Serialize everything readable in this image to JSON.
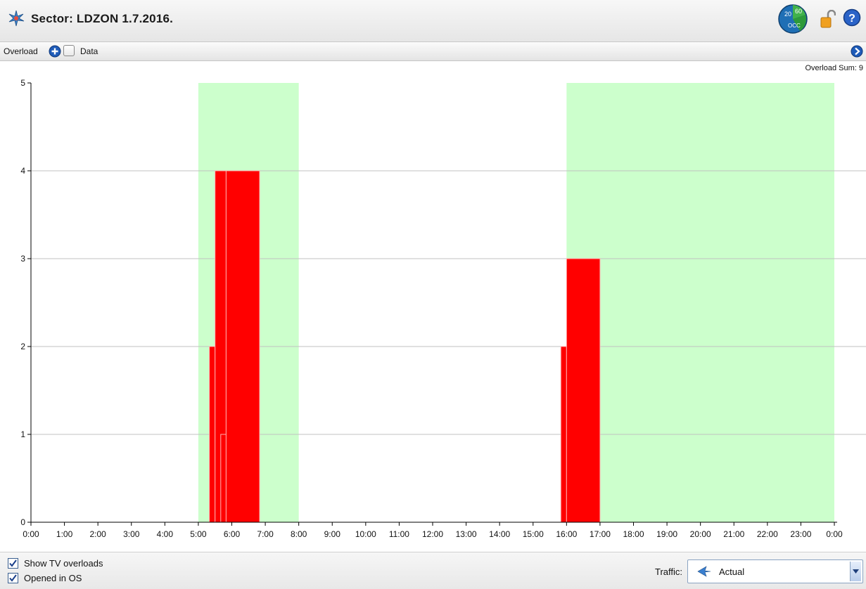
{
  "window": {
    "title": "Sector: LDZON  1.7.2016."
  },
  "toolbar": {
    "overload_label": "Overload",
    "data_label": "Data",
    "data_checked": false
  },
  "chart": {
    "overload_sum": "Overload Sum: 9"
  },
  "chart_data": {
    "type": "bar",
    "xlabel": "",
    "ylabel": "",
    "x_ticks": [
      "0:00",
      "1:00",
      "2:00",
      "3:00",
      "4:00",
      "5:00",
      "6:00",
      "7:00",
      "8:00",
      "9:00",
      "10:00",
      "11:00",
      "12:00",
      "13:00",
      "14:00",
      "15:00",
      "16:00",
      "17:00",
      "18:00",
      "19:00",
      "20:00",
      "21:00",
      "22:00",
      "23:00",
      "0:00"
    ],
    "y_ticks": [
      "0",
      "1",
      "2",
      "3",
      "4",
      "5"
    ],
    "xlim_hours": [
      0,
      24
    ],
    "ylim": [
      0,
      5
    ],
    "grid": "horizontal",
    "background_periods": [
      {
        "start": 5.0,
        "end": 8.0,
        "color": "#ccffcc"
      },
      {
        "start": 16.0,
        "end": 24.0,
        "color": "#ccffcc"
      }
    ],
    "bars": [
      {
        "start": 5.33,
        "end": 5.5,
        "value": 2
      },
      {
        "start": 5.5,
        "end": 5.83,
        "value": 4
      },
      {
        "start": 5.67,
        "end": 5.83,
        "value": 1
      },
      {
        "start": 5.83,
        "end": 6.83,
        "value": 4
      },
      {
        "start": 15.83,
        "end": 16.0,
        "value": 2
      },
      {
        "start": 16.0,
        "end": 17.0,
        "value": 3
      }
    ],
    "bar_color": "#ff0000"
  },
  "bottom": {
    "show_tv_overloads": "Show TV overloads",
    "opened_in_os": "Opened in OS",
    "traffic_label": "Traffic:",
    "traffic_value": "Actual"
  }
}
